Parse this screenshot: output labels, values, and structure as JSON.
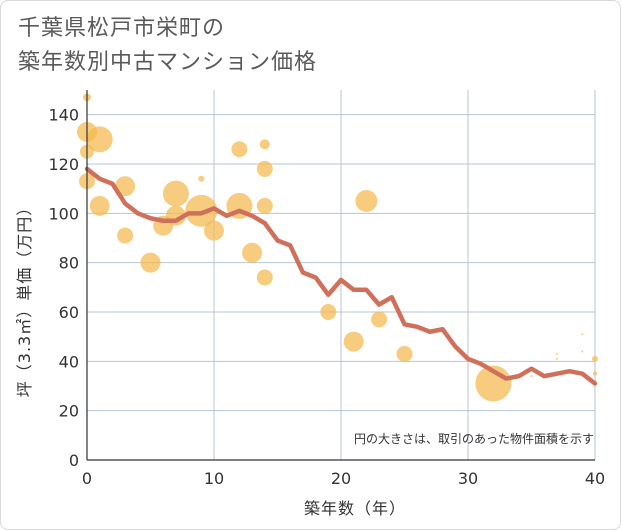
{
  "title_line1": "千葉県松戸市栄町の",
  "title_line2": "築年数別中古マンション価格",
  "note": "円の大きさは、取引のあった物件面積を示す",
  "colors": {
    "bubble": "#f5b84e",
    "line": "#d0705a",
    "grid": "#b8c4d4",
    "axis": "#333333"
  },
  "chart_data": {
    "type": "scatter",
    "xlabel": "築年数（年）",
    "ylabel": "坪（3.3㎡）単価（万円）",
    "xlim": [
      0,
      40
    ],
    "ylim": [
      0,
      150
    ],
    "x_ticks": [
      0,
      10,
      20,
      30,
      40
    ],
    "y_ticks": [
      0,
      20,
      40,
      60,
      80,
      100,
      120,
      140
    ],
    "grid": true,
    "bubbles": [
      {
        "x": 0,
        "y": 147,
        "r": 4
      },
      {
        "x": 0,
        "y": 133,
        "r": 10
      },
      {
        "x": 0,
        "y": 125,
        "r": 7
      },
      {
        "x": 0,
        "y": 113,
        "r": 8
      },
      {
        "x": 1,
        "y": 130,
        "r": 13
      },
      {
        "x": 1,
        "y": 103,
        "r": 10
      },
      {
        "x": 3,
        "y": 111,
        "r": 10
      },
      {
        "x": 3,
        "y": 91,
        "r": 8
      },
      {
        "x": 5,
        "y": 80,
        "r": 10
      },
      {
        "x": 6,
        "y": 95,
        "r": 10
      },
      {
        "x": 7,
        "y": 108,
        "r": 13
      },
      {
        "x": 7,
        "y": 99,
        "r": 10
      },
      {
        "x": 9,
        "y": 114,
        "r": 3
      },
      {
        "x": 9,
        "y": 101,
        "r": 16
      },
      {
        "x": 10,
        "y": 93,
        "r": 10
      },
      {
        "x": 12,
        "y": 126,
        "r": 8
      },
      {
        "x": 12,
        "y": 103,
        "r": 13
      },
      {
        "x": 13,
        "y": 84,
        "r": 10
      },
      {
        "x": 14,
        "y": 128,
        "r": 5
      },
      {
        "x": 14,
        "y": 118,
        "r": 8
      },
      {
        "x": 14,
        "y": 103,
        "r": 8
      },
      {
        "x": 14,
        "y": 74,
        "r": 8
      },
      {
        "x": 19,
        "y": 60,
        "r": 8
      },
      {
        "x": 21,
        "y": 48,
        "r": 10
      },
      {
        "x": 22,
        "y": 105,
        "r": 11
      },
      {
        "x": 23,
        "y": 57,
        "r": 8
      },
      {
        "x": 25,
        "y": 43,
        "r": 8
      },
      {
        "x": 32,
        "y": 31,
        "r": 18
      },
      {
        "x": 35,
        "y": 34,
        "r": 1
      },
      {
        "x": 37,
        "y": 43,
        "r": 1
      },
      {
        "x": 37,
        "y": 41,
        "r": 1
      },
      {
        "x": 39,
        "y": 51,
        "r": 1
      },
      {
        "x": 39,
        "y": 44,
        "r": 1
      },
      {
        "x": 40,
        "y": 41,
        "r": 3
      },
      {
        "x": 40,
        "y": 35,
        "r": 2
      }
    ],
    "series": [
      {
        "type": "line",
        "x": [
          0,
          1,
          2,
          3,
          4,
          5,
          6,
          7,
          8,
          9,
          10,
          11,
          12,
          13,
          14,
          15,
          16,
          17,
          18,
          19,
          20,
          21,
          22,
          23,
          24,
          25,
          26,
          27,
          28,
          29,
          30,
          31,
          32,
          33,
          34,
          35,
          36,
          37,
          38,
          39,
          40
        ],
        "values": [
          118,
          114,
          112,
          104,
          100,
          98,
          97,
          97,
          100,
          100,
          102,
          99,
          101,
          99,
          96,
          89,
          87,
          76,
          74,
          67,
          73,
          69,
          69,
          63,
          66,
          55,
          54,
          52,
          53,
          46,
          41,
          39,
          36,
          33,
          34,
          37,
          34,
          35,
          36,
          35,
          31
        ]
      }
    ]
  }
}
